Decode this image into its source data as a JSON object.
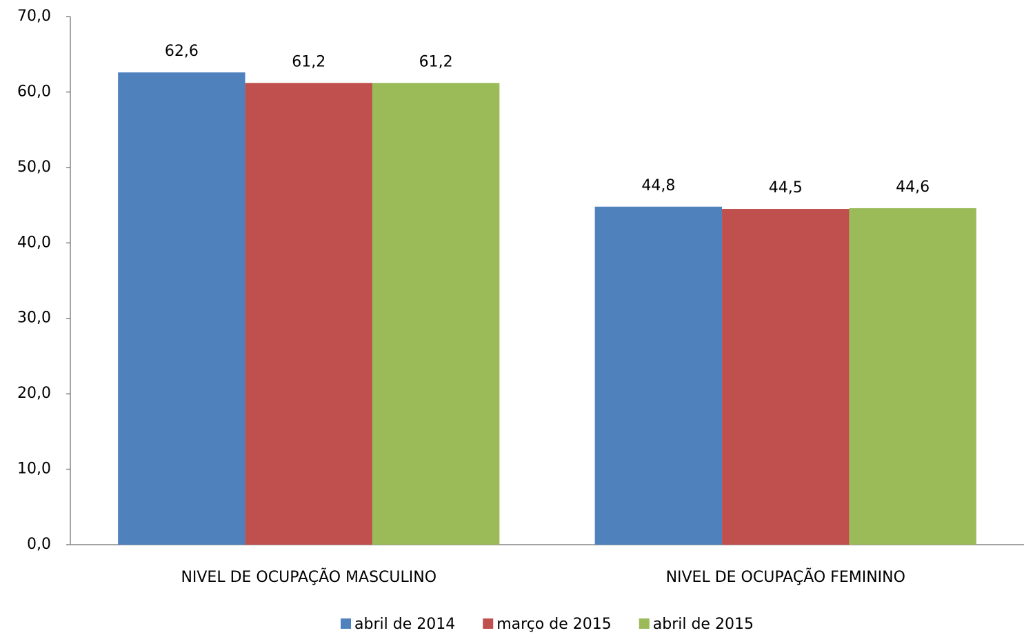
{
  "chart_data": {
    "type": "bar",
    "categories": [
      "NIVEL DE OCUPAÇÃO MASCULINO",
      "NIVEL DE OCUPAÇÃO FEMININO"
    ],
    "series": [
      {
        "name": "abril de 2014",
        "color": "#4f81bd",
        "values": [
          62.6,
          44.8
        ],
        "value_labels": [
          "62,6",
          "44,8"
        ]
      },
      {
        "name": "março de 2015",
        "color": "#c0504d",
        "values": [
          61.2,
          44.5
        ],
        "value_labels": [
          "61,2",
          "44,5"
        ]
      },
      {
        "name": "abril de 2015",
        "color": "#9bbb59",
        "values": [
          61.2,
          44.6
        ],
        "value_labels": [
          "61,2",
          "44,6"
        ]
      }
    ],
    "ylim": [
      0,
      70
    ],
    "yticks": [
      {
        "value": 0,
        "label": "0,0"
      },
      {
        "value": 10,
        "label": "10,0"
      },
      {
        "value": 20,
        "label": "20,0"
      },
      {
        "value": 30,
        "label": "30,0"
      },
      {
        "value": 40,
        "label": "40,0"
      },
      {
        "value": 50,
        "label": "50,0"
      },
      {
        "value": 60,
        "label": "60,0"
      },
      {
        "value": 70,
        "label": "70,0"
      }
    ],
    "grid": false,
    "legend": "bottom"
  }
}
